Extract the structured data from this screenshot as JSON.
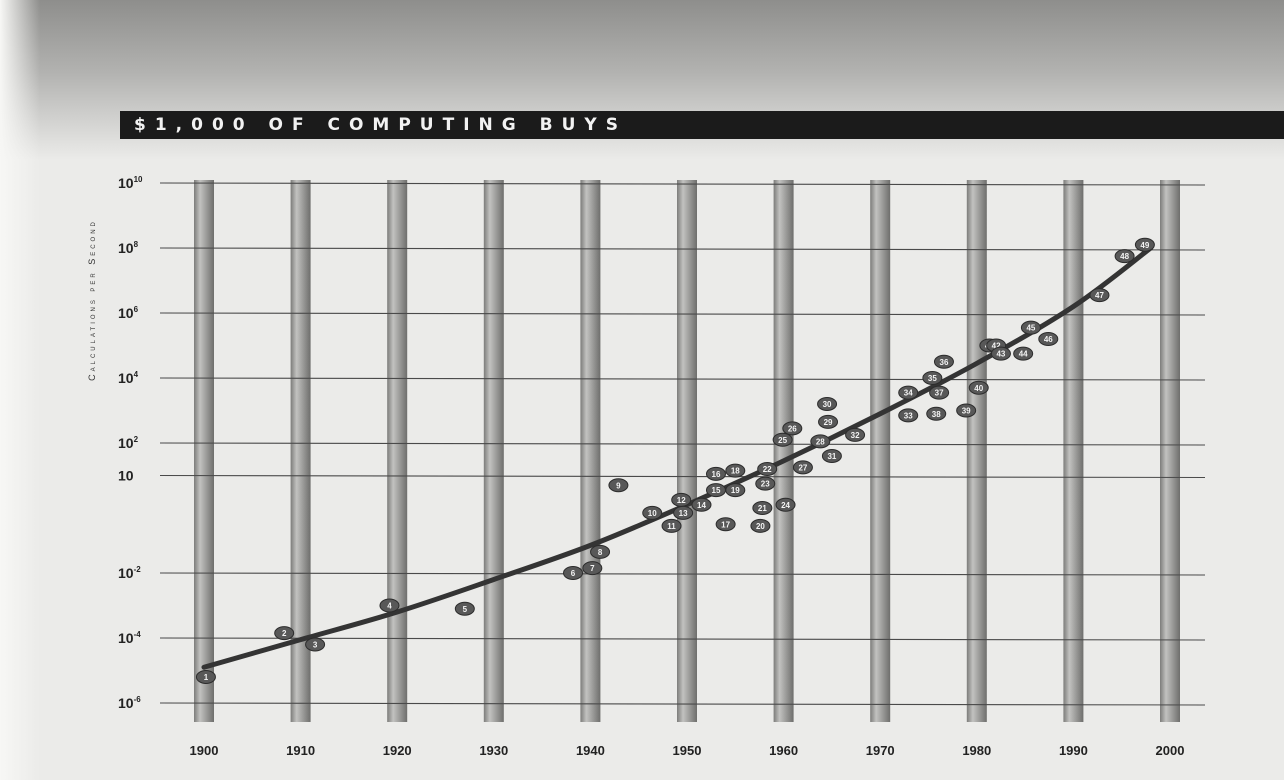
{
  "chart_data": {
    "type": "scatter",
    "title": "$1,000 OF COMPUTING BUYS",
    "ylabel": "Calculations per Second",
    "xlabel": "",
    "y_scale": "log",
    "xlim": [
      1900,
      2000
    ],
    "ylim_exponent": [
      -6,
      10
    ],
    "x_ticks": [
      "1900",
      "1910",
      "1920",
      "1930",
      "1940",
      "1950",
      "1960",
      "1970",
      "1980",
      "1990",
      "2000"
    ],
    "y_ticks": [
      {
        "exp": 10,
        "base": "10",
        "sup": "10"
      },
      {
        "exp": 8,
        "base": "10",
        "sup": "8"
      },
      {
        "exp": 6,
        "base": "10",
        "sup": "6"
      },
      {
        "exp": 4,
        "base": "10",
        "sup": "4"
      },
      {
        "exp": 2,
        "base": "10",
        "sup": "2"
      },
      {
        "exp": 1,
        "base": "10",
        "sup": ""
      },
      {
        "exp": -2,
        "base": "10",
        "sup": "-2"
      },
      {
        "exp": -4,
        "base": "10",
        "sup": "-4"
      },
      {
        "exp": -6,
        "base": "10",
        "sup": "-6"
      }
    ],
    "grid": true,
    "points": [
      {
        "label": "1",
        "year": 1900.2,
        "exp": -5.2
      },
      {
        "label": "2",
        "year": 1908.3,
        "exp": -3.85
      },
      {
        "label": "3",
        "year": 1911.5,
        "exp": -4.2
      },
      {
        "label": "4",
        "year": 1919.2,
        "exp": -3.0
      },
      {
        "label": "5",
        "year": 1927.0,
        "exp": -3.1
      },
      {
        "label": "6",
        "year": 1938.2,
        "exp": -2.0
      },
      {
        "label": "7",
        "year": 1940.2,
        "exp": -1.85
      },
      {
        "label": "8",
        "year": 1941.0,
        "exp": -1.35
      },
      {
        "label": "9",
        "year": 1942.9,
        "exp": 0.7
      },
      {
        "label": "10",
        "year": 1946.4,
        "exp": -0.15
      },
      {
        "label": "11",
        "year": 1948.4,
        "exp": -0.55
      },
      {
        "label": "12",
        "year": 1949.4,
        "exp": 0.25
      },
      {
        "label": "13",
        "year": 1949.6,
        "exp": -0.15
      },
      {
        "label": "14",
        "year": 1951.5,
        "exp": 0.1
      },
      {
        "label": "15",
        "year": 1953.0,
        "exp": 0.55
      },
      {
        "label": "16",
        "year": 1953.0,
        "exp": 1.05
      },
      {
        "label": "17",
        "year": 1954.0,
        "exp": -0.5
      },
      {
        "label": "18",
        "year": 1955.0,
        "exp": 1.15
      },
      {
        "label": "19",
        "year": 1955.0,
        "exp": 0.55
      },
      {
        "label": "20",
        "year": 1957.6,
        "exp": -0.55
      },
      {
        "label": "21",
        "year": 1957.8,
        "exp": 0.0
      },
      {
        "label": "22",
        "year": 1958.3,
        "exp": 1.2
      },
      {
        "label": "23",
        "year": 1958.1,
        "exp": 0.75
      },
      {
        "label": "24",
        "year": 1960.2,
        "exp": 0.1
      },
      {
        "label": "25",
        "year": 1959.9,
        "exp": 2.1
      },
      {
        "label": "26",
        "year": 1960.9,
        "exp": 2.45
      },
      {
        "label": "27",
        "year": 1962.0,
        "exp": 1.25
      },
      {
        "label": "28",
        "year": 1963.8,
        "exp": 2.05
      },
      {
        "label": "29",
        "year": 1964.6,
        "exp": 2.65
      },
      {
        "label": "30",
        "year": 1964.5,
        "exp": 3.2
      },
      {
        "label": "31",
        "year": 1965.0,
        "exp": 1.6
      },
      {
        "label": "32",
        "year": 1967.4,
        "exp": 2.25
      },
      {
        "label": "33",
        "year": 1972.9,
        "exp": 2.85
      },
      {
        "label": "34",
        "year": 1972.9,
        "exp": 3.55
      },
      {
        "label": "35",
        "year": 1975.4,
        "exp": 4.0
      },
      {
        "label": "36",
        "year": 1976.6,
        "exp": 4.5
      },
      {
        "label": "37",
        "year": 1976.1,
        "exp": 3.55
      },
      {
        "label": "38",
        "year": 1975.8,
        "exp": 2.9
      },
      {
        "label": "39",
        "year": 1978.9,
        "exp": 3.0
      },
      {
        "label": "40",
        "year": 1980.2,
        "exp": 3.7
      },
      {
        "label": "41",
        "year": 1981.3,
        "exp": 5.0
      },
      {
        "label": "42",
        "year": 1982.0,
        "exp": 5.0
      },
      {
        "label": "43",
        "year": 1982.5,
        "exp": 4.75
      },
      {
        "label": "44",
        "year": 1984.8,
        "exp": 4.75
      },
      {
        "label": "45",
        "year": 1985.6,
        "exp": 5.55
      },
      {
        "label": "46",
        "year": 1987.4,
        "exp": 5.2
      },
      {
        "label": "47",
        "year": 1992.7,
        "exp": 6.55
      },
      {
        "label": "48",
        "year": 1995.3,
        "exp": 7.75
      },
      {
        "label": "49",
        "year": 1997.4,
        "exp": 8.1
      }
    ],
    "trend": [
      {
        "year": 1900,
        "exp": -4.9
      },
      {
        "year": 1910,
        "exp": -4.05
      },
      {
        "year": 1920,
        "exp": -3.2
      },
      {
        "year": 1930,
        "exp": -2.2
      },
      {
        "year": 1940,
        "exp": -1.15
      },
      {
        "year": 1950,
        "exp": 0.1
      },
      {
        "year": 1960,
        "exp": 1.45
      },
      {
        "year": 1970,
        "exp": 2.9
      },
      {
        "year": 1980,
        "exp": 4.45
      },
      {
        "year": 1990,
        "exp": 6.2
      },
      {
        "year": 1998,
        "exp": 8.0
      }
    ],
    "colors": {
      "columns": "#a4a4a2",
      "trend": "#343434",
      "gridline": "#4a4a4a",
      "marker": "#585858"
    }
  }
}
